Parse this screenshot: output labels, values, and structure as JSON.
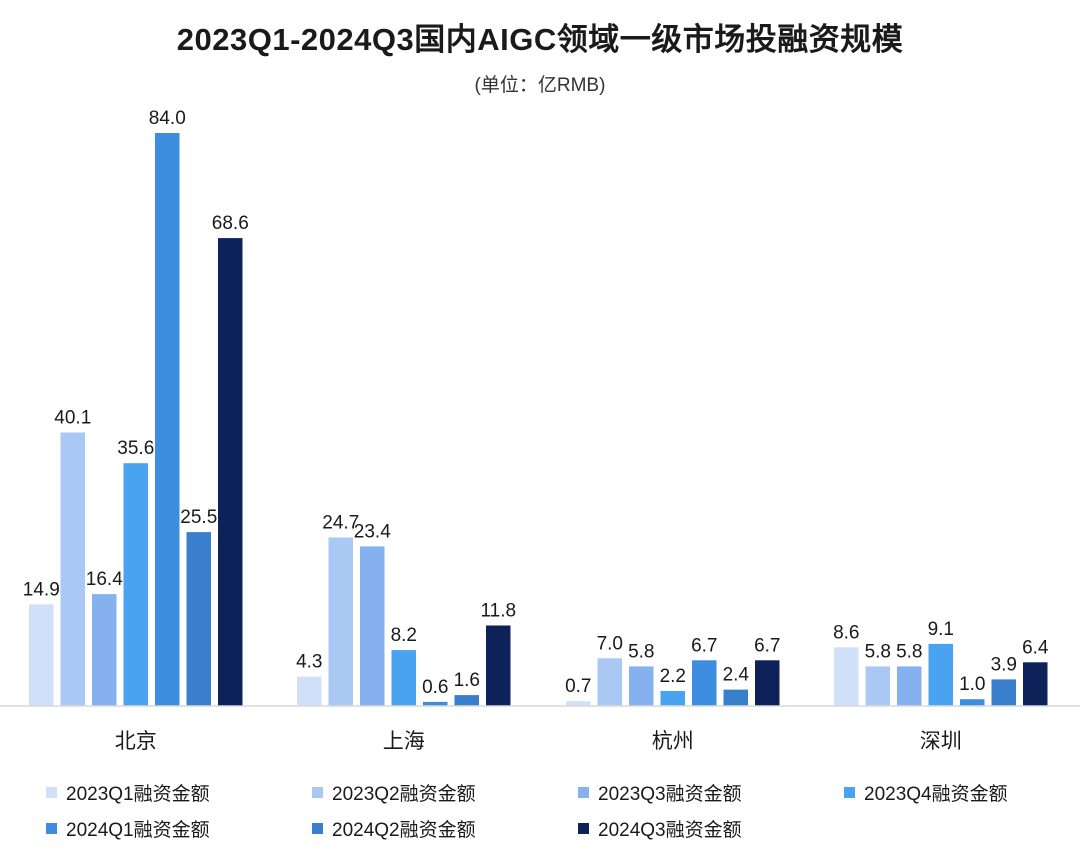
{
  "chart_data": {
    "type": "bar",
    "title": "2023Q1-2024Q3国内AIGC领域一级市场投融资规模",
    "subtitle": "(单位：亿RMB)",
    "categories": [
      "北京",
      "上海",
      "杭州",
      "深圳"
    ],
    "series": [
      {
        "name": "2023Q1融资金额",
        "color": "#cfe0f8",
        "values": [
          14.9,
          4.3,
          0.7,
          8.6
        ],
        "labels": [
          "14.9",
          "4.3",
          "0.7",
          "8.6"
        ]
      },
      {
        "name": "2023Q2融资金额",
        "color": "#a9c8f3",
        "values": [
          40.1,
          24.7,
          7.0,
          5.8
        ],
        "labels": [
          "40.1",
          "24.7",
          "7.0",
          "5.8"
        ]
      },
      {
        "name": "2023Q3融资金额",
        "color": "#85b2ee",
        "values": [
          16.4,
          23.4,
          5.8,
          5.8
        ],
        "labels": [
          "16.4",
          "23.4",
          "5.8",
          "5.8"
        ]
      },
      {
        "name": "2023Q4融资金额",
        "color": "#4aa3f0",
        "values": [
          35.6,
          8.2,
          2.2,
          9.1
        ],
        "labels": [
          "35.6",
          "8.2",
          "2.2",
          "9.1"
        ]
      },
      {
        "name": "2024Q1融资金额",
        "color": "#3d8ee0",
        "values": [
          84.0,
          0.6,
          6.7,
          1.0
        ],
        "labels": [
          "84.0",
          "0.6",
          "6.7",
          "1.0"
        ]
      },
      {
        "name": "2024Q2融资金额",
        "color": "#3a7fcc",
        "values": [
          25.5,
          1.6,
          2.4,
          3.9
        ],
        "labels": [
          "25.5",
          "1.6",
          "2.4",
          "3.9"
        ]
      },
      {
        "name": "2024Q3融资金额",
        "color": "#0d2259",
        "values": [
          68.6,
          11.8,
          6.7,
          6.4
        ],
        "labels": [
          "68.6",
          "11.8",
          "6.7",
          "6.4"
        ]
      }
    ],
    "ylim": [
      0,
      84.0
    ],
    "grid": false,
    "legend_position": "bottom"
  }
}
